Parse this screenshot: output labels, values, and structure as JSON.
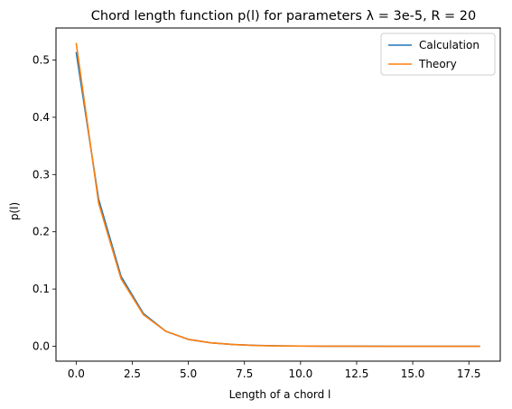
{
  "chart_data": {
    "type": "line",
    "title": "Chord length function p(l) for parameters λ = 3e-5, R = 20",
    "xlabel": "Length of a chord l",
    "ylabel": "p(l)",
    "xlim": [
      -0.9,
      18.9
    ],
    "ylim": [
      -0.026,
      0.556
    ],
    "xticks": [
      0.0,
      2.5,
      5.0,
      7.5,
      10.0,
      12.5,
      15.0,
      17.5
    ],
    "xtick_labels": [
      "0.0",
      "2.5",
      "5.0",
      "7.5",
      "10.0",
      "12.5",
      "15.0",
      "17.5"
    ],
    "yticks": [
      0.0,
      0.1,
      0.2,
      0.3,
      0.4,
      0.5
    ],
    "ytick_labels": [
      "0.0",
      "0.1",
      "0.2",
      "0.3",
      "0.4",
      "0.5"
    ],
    "grid": false,
    "legend_position": "top-right",
    "x": [
      0,
      1,
      2,
      3,
      4,
      5,
      6,
      7,
      8,
      9,
      10,
      11,
      12,
      13,
      14,
      15,
      16,
      17,
      18
    ],
    "series": [
      {
        "name": "Calculation",
        "color": "#1f77b4",
        "values": [
          0.514,
          0.257,
          0.122,
          0.057,
          0.026,
          0.012,
          0.006,
          0.003,
          0.0015,
          0.0008,
          0.0004,
          0.0002,
          0.0001,
          0.0001,
          0.0,
          0.0,
          0.0,
          0.0,
          0.0
        ]
      },
      {
        "name": "Theory",
        "color": "#ff7f0e",
        "values": [
          0.53,
          0.25,
          0.118,
          0.055,
          0.026,
          0.012,
          0.006,
          0.003,
          0.0013,
          0.0006,
          0.0003,
          0.0001,
          0.0001,
          0.0,
          0.0,
          0.0,
          0.0,
          0.0,
          0.0
        ]
      }
    ]
  }
}
